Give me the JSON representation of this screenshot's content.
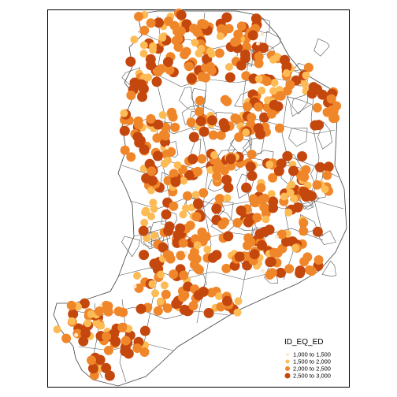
{
  "legend": {
    "title": "ID_EQ_ED",
    "classes": [
      {
        "label": "1,000 to 1,500",
        "color": "#fee8c8"
      },
      {
        "label": "1,500 to 2,000",
        "color": "#fdbb55"
      },
      {
        "label": "2,000 to 2,500",
        "color": "#f0862a"
      },
      {
        "label": "2,500 to 3,000",
        "color": "#c4470e"
      }
    ]
  },
  "colors": {
    "boundary": "#404040",
    "frame": "#000000",
    "background": "#ffffff"
  }
}
